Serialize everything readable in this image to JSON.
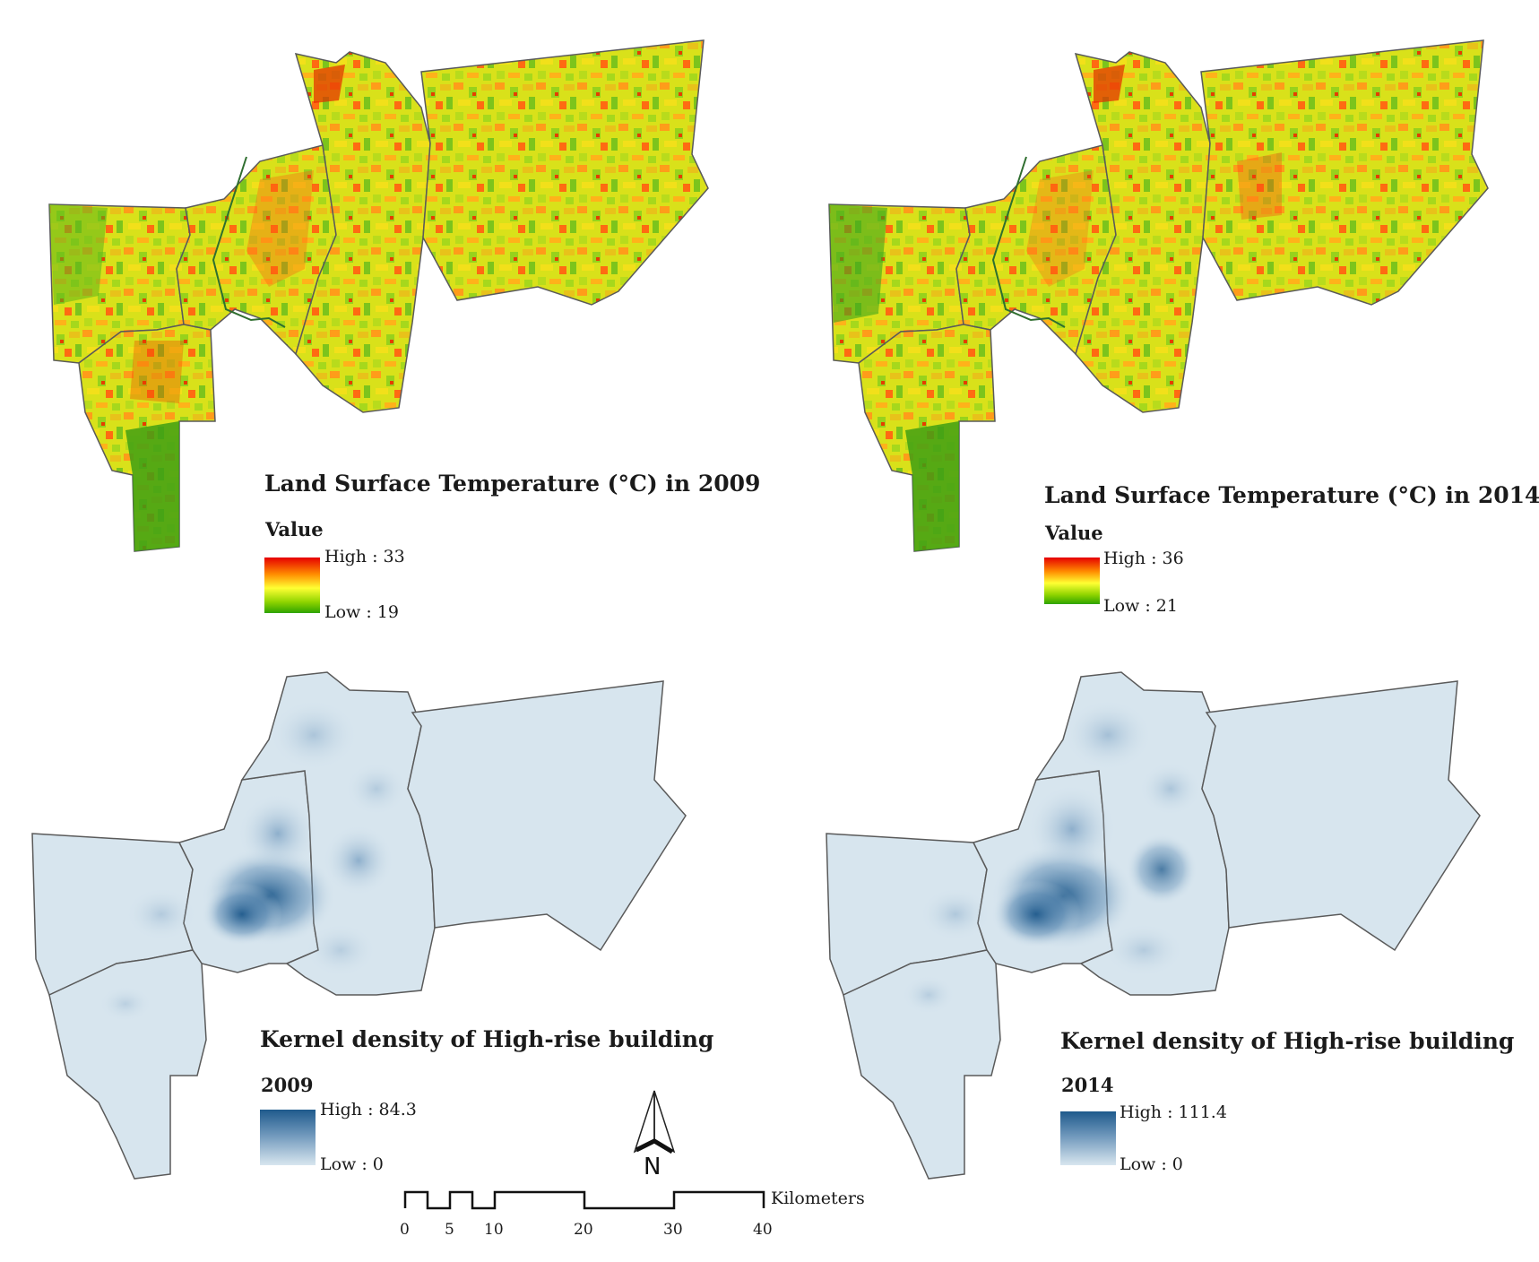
{
  "panels": {
    "lst2009": {
      "title": "Land Surface Temperature (°C) in 2009",
      "subtitle": "Value",
      "high": "High : 33",
      "low": "Low : 19"
    },
    "lst2014": {
      "title": "Land Surface Temperature (°C) in 2014",
      "subtitle": "Value",
      "high": "High : 36",
      "low": "Low : 21"
    },
    "kd2009": {
      "title": "Kernel density of High-rise building",
      "subtitle": "2009",
      "high": "High : 84.3",
      "low": "Low : 0"
    },
    "kd2014": {
      "title": "Kernel density of High-rise building",
      "subtitle": "2014",
      "high": "High : 111.4",
      "low": "Low : 0"
    }
  },
  "north_arrow": {
    "label": "N"
  },
  "scale_bar": {
    "unit": "Kilometers",
    "ticks": [
      "0",
      "5",
      "10",
      "20",
      "30",
      "40"
    ]
  },
  "colors": {
    "lst_high": "#e60000",
    "lst_mid": "#ffff33",
    "lst_low": "#2ea300",
    "kd_high": "#1f5a8c",
    "kd_low": "#d8e6ef",
    "boundary": "#5a5a5a"
  }
}
